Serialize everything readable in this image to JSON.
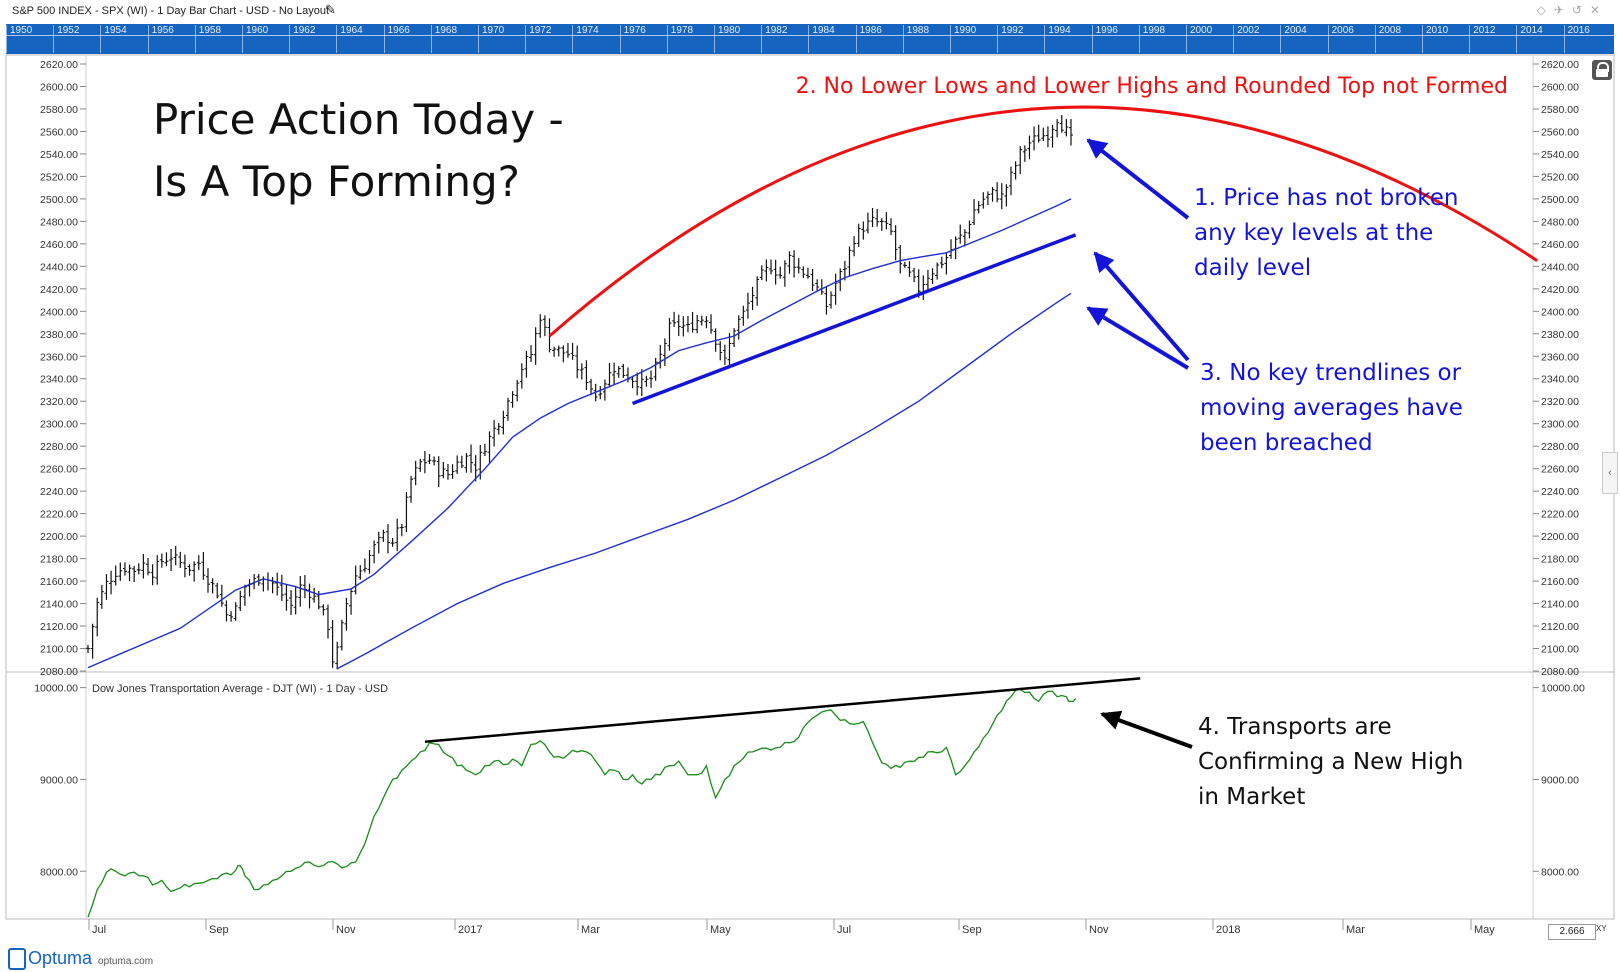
{
  "window": {
    "title": "S&P 500 INDEX - SPX (WI) - 1 Day Bar Chart - USD - No Layout",
    "pen_icon": "pen-icon",
    "controls": [
      "◇",
      "✈",
      "↺",
      "✕"
    ]
  },
  "year_bar": [
    "1950",
    "1952",
    "1954",
    "1956",
    "1958",
    "1960",
    "1962",
    "1964",
    "1966",
    "1968",
    "1970",
    "1972",
    "1974",
    "1976",
    "1978",
    "1980",
    "1982",
    "1984",
    "1986",
    "1988",
    "1990",
    "1992",
    "1994",
    "1996",
    "1998",
    "2000",
    "2002",
    "2004",
    "2006",
    "2008",
    "2010",
    "2012",
    "2014",
    "2016"
  ],
  "colors": {
    "price_bars": "#111111",
    "moving_average": "#1f2fd6",
    "top_arc": "#ee1111",
    "annotation_blue": "#1414d8",
    "transports": "#1a8c1a",
    "trendline_black": "#000000",
    "year_bar": "#1565c0"
  },
  "annotations": {
    "heading_line1": "Price Action Today -",
    "heading_line2": "Is A Top Forming?",
    "note2": "2. No Lower Lows and Lower Highs and Rounded Top not Formed",
    "note1_lines": [
      "1. Price has not broken",
      "any key levels at the",
      "daily level"
    ],
    "note3_lines": [
      "3. No key trendlines or",
      "moving averages have",
      "been breached"
    ],
    "note4_lines": [
      "4. Transports are",
      "Confirming a New High",
      "in Market"
    ]
  },
  "lower_panel_title": "Dow Jones Transportation Average - DJT (WI) - 1 Day - USD",
  "footer": {
    "brand": "Optuma",
    "site": "optuma.com",
    "zoom": "2.666",
    "xy_label": "XY"
  },
  "chart_data": [
    {
      "type": "bar",
      "title": "",
      "series_name": "S&P 500 INDEX - SPX (WI)",
      "ylim": [
        2080,
        2620
      ],
      "yticks": [
        "2620.00",
        "2600.00",
        "2580.00",
        "2560.00",
        "2540.00",
        "2520.00",
        "2500.00",
        "2480.00",
        "2460.00",
        "2440.00",
        "2420.00",
        "2400.00",
        "2380.00",
        "2360.00",
        "2340.00",
        "2320.00",
        "2300.00",
        "2280.00",
        "2260.00",
        "2240.00",
        "2220.00",
        "2200.00",
        "2180.00",
        "2160.00",
        "2140.00",
        "2120.00",
        "2100.00",
        "2080.00"
      ],
      "xticks": [
        "Jul",
        "Sep",
        "Nov",
        "2017",
        "Mar",
        "May",
        "Jul",
        "Sep",
        "Nov",
        "2018",
        "Mar",
        "May"
      ],
      "close_path": [
        [
          0,
          2100
        ],
        [
          2,
          2140
        ],
        [
          4,
          2158
        ],
        [
          6,
          2168
        ],
        [
          8,
          2172
        ],
        [
          10,
          2170
        ],
        [
          12,
          2175
        ],
        [
          14,
          2168
        ],
        [
          16,
          2178
        ],
        [
          18,
          2182
        ],
        [
          20,
          2176
        ],
        [
          22,
          2172
        ],
        [
          24,
          2176
        ],
        [
          26,
          2162
        ],
        [
          28,
          2150
        ],
        [
          30,
          2130
        ],
        [
          32,
          2135
        ],
        [
          34,
          2155
        ],
        [
          36,
          2160
        ],
        [
          38,
          2165
        ],
        [
          40,
          2158
        ],
        [
          42,
          2148
        ],
        [
          44,
          2138
        ],
        [
          46,
          2155
        ],
        [
          48,
          2150
        ],
        [
          50,
          2140
        ],
        [
          52,
          2120
        ],
        [
          53,
          2090
        ],
        [
          54,
          2098
        ],
        [
          56,
          2140
        ],
        [
          58,
          2165
        ],
        [
          60,
          2175
        ],
        [
          62,
          2190
        ],
        [
          64,
          2200
        ],
        [
          66,
          2196
        ],
        [
          68,
          2210
        ],
        [
          70,
          2250
        ],
        [
          72,
          2265
        ],
        [
          74,
          2268
        ],
        [
          76,
          2258
        ],
        [
          78,
          2255
        ],
        [
          80,
          2265
        ],
        [
          82,
          2270
        ],
        [
          84,
          2262
        ],
        [
          86,
          2280
        ],
        [
          88,
          2295
        ],
        [
          90,
          2310
        ],
        [
          92,
          2330
        ],
        [
          94,
          2350
        ],
        [
          96,
          2362
        ],
        [
          98,
          2396
        ],
        [
          100,
          2370
        ],
        [
          102,
          2365
        ],
        [
          104,
          2362
        ],
        [
          106,
          2350
        ],
        [
          108,
          2340
        ],
        [
          110,
          2325
        ],
        [
          112,
          2338
        ],
        [
          114,
          2350
        ],
        [
          116,
          2345
        ],
        [
          118,
          2340
        ],
        [
          120,
          2335
        ],
        [
          122,
          2340
        ],
        [
          124,
          2360
        ],
        [
          126,
          2385
        ],
        [
          128,
          2388
        ],
        [
          130,
          2385
        ],
        [
          132,
          2392
        ],
        [
          134,
          2395
        ],
        [
          136,
          2375
        ],
        [
          138,
          2355
        ],
        [
          140,
          2385
        ],
        [
          142,
          2398
        ],
        [
          144,
          2415
        ],
        [
          146,
          2432
        ],
        [
          148,
          2440
        ],
        [
          150,
          2432
        ],
        [
          152,
          2448
        ],
        [
          154,
          2438
        ],
        [
          156,
          2432
        ],
        [
          158,
          2420
        ],
        [
          160,
          2405
        ],
        [
          162,
          2425
        ],
        [
          164,
          2440
        ],
        [
          166,
          2465
        ],
        [
          168,
          2475
        ],
        [
          170,
          2480
        ],
        [
          172,
          2478
        ],
        [
          174,
          2470
        ],
        [
          176,
          2440
        ],
        [
          178,
          2432
        ],
        [
          180,
          2420
        ],
        [
          182,
          2432
        ],
        [
          184,
          2440
        ],
        [
          186,
          2448
        ],
        [
          188,
          2462
        ],
        [
          190,
          2470
        ],
        [
          192,
          2490
        ],
        [
          194,
          2500
        ],
        [
          196,
          2505
        ],
        [
          198,
          2502
        ],
        [
          200,
          2520
        ],
        [
          202,
          2540
        ],
        [
          204,
          2550
        ],
        [
          206,
          2555
        ],
        [
          208,
          2558
        ],
        [
          210,
          2572
        ],
        [
          212,
          2560
        ],
        [
          213,
          2552
        ]
      ],
      "moving_averages": [
        {
          "name": "shorter MA",
          "points": [
            [
              0,
              2083
            ],
            [
              20,
              2118
            ],
            [
              32,
              2152
            ],
            [
              38,
              2162
            ],
            [
              45,
              2155
            ],
            [
              50,
              2148
            ],
            [
              57,
              2153
            ],
            [
              62,
              2166
            ],
            [
              70,
              2195
            ],
            [
              78,
              2225
            ],
            [
              86,
              2260
            ],
            [
              92,
              2288
            ],
            [
              98,
              2305
            ],
            [
              104,
              2318
            ],
            [
              110,
              2328
            ],
            [
              116,
              2338
            ],
            [
              122,
              2350
            ],
            [
              128,
              2365
            ],
            [
              134,
              2372
            ],
            [
              140,
              2378
            ],
            [
              146,
              2392
            ],
            [
              152,
              2405
            ],
            [
              158,
              2418
            ],
            [
              164,
              2430
            ],
            [
              170,
              2438
            ],
            [
              176,
              2445
            ],
            [
              180,
              2448
            ],
            [
              186,
              2452
            ],
            [
              192,
              2462
            ],
            [
              198,
              2472
            ],
            [
              204,
              2483
            ],
            [
              210,
              2494
            ],
            [
              213,
              2500
            ]
          ]
        },
        {
          "name": "longer MA",
          "points": [
            [
              54,
              2082
            ],
            [
              60,
              2095
            ],
            [
              70,
              2118
            ],
            [
              80,
              2140
            ],
            [
              90,
              2158
            ],
            [
              100,
              2172
            ],
            [
              110,
              2185
            ],
            [
              120,
              2200
            ],
            [
              130,
              2215
            ],
            [
              140,
              2232
            ],
            [
              150,
              2252
            ],
            [
              160,
              2272
            ],
            [
              170,
              2295
            ],
            [
              180,
              2320
            ],
            [
              190,
              2350
            ],
            [
              200,
              2380
            ],
            [
              210,
              2408
            ],
            [
              213,
              2416
            ]
          ]
        }
      ],
      "trendline": [
        [
          118,
          2318
        ],
        [
          214,
          2468
        ]
      ],
      "rounded_top_arc": {
        "from": [
          100,
          2378
        ],
        "apex": [
          205,
          2580
        ],
        "to": [
          314,
          2445
        ]
      }
    },
    {
      "type": "line",
      "title": "Dow Jones Transportation Average - DJT (WI) - 1 Day - USD",
      "ylim": [
        7480,
        10170
      ],
      "yticks": [
        "10000.00",
        "9000.00",
        "8000.00"
      ],
      "series": [
        {
          "name": "Dow Jones Transportation Average - DJT (WI)",
          "color": "#1a8c1a",
          "points": [
            [
              0,
              7500
            ],
            [
              2,
              7800
            ],
            [
              4,
              7990
            ],
            [
              6,
              8000
            ],
            [
              8,
              7950
            ],
            [
              10,
              7990
            ],
            [
              12,
              7950
            ],
            [
              14,
              7850
            ],
            [
              16,
              7900
            ],
            [
              18,
              7780
            ],
            [
              20,
              7820
            ],
            [
              22,
              7830
            ],
            [
              24,
              7870
            ],
            [
              26,
              7900
            ],
            [
              28,
              7920
            ],
            [
              30,
              7980
            ],
            [
              32,
              8010
            ],
            [
              33,
              8060
            ],
            [
              34,
              7950
            ],
            [
              36,
              7800
            ],
            [
              38,
              7850
            ],
            [
              40,
              7900
            ],
            [
              42,
              7950
            ],
            [
              44,
              8000
            ],
            [
              46,
              8050
            ],
            [
              48,
              8100
            ],
            [
              50,
              8050
            ],
            [
              52,
              8100
            ],
            [
              54,
              8080
            ],
            [
              56,
              8050
            ],
            [
              58,
              8100
            ],
            [
              60,
              8300
            ],
            [
              62,
              8600
            ],
            [
              64,
              8800
            ],
            [
              66,
              9000
            ],
            [
              68,
              9100
            ],
            [
              70,
              9200
            ],
            [
              72,
              9300
            ],
            [
              74,
              9400
            ],
            [
              76,
              9380
            ],
            [
              78,
              9260
            ],
            [
              80,
              9150
            ],
            [
              82,
              9100
            ],
            [
              84,
              9050
            ],
            [
              86,
              9150
            ],
            [
              88,
              9200
            ],
            [
              90,
              9160
            ],
            [
              92,
              9220
            ],
            [
              94,
              9150
            ],
            [
              96,
              9380
            ],
            [
              98,
              9420
            ],
            [
              100,
              9300
            ],
            [
              102,
              9250
            ],
            [
              104,
              9270
            ],
            [
              106,
              9300
            ],
            [
              108,
              9300
            ],
            [
              110,
              9200
            ],
            [
              112,
              9050
            ],
            [
              114,
              9100
            ],
            [
              116,
              9000
            ],
            [
              118,
              9050
            ],
            [
              120,
              8950
            ],
            [
              122,
              9000
            ],
            [
              124,
              9050
            ],
            [
              126,
              9150
            ],
            [
              128,
              9200
            ],
            [
              130,
              9050
            ],
            [
              132,
              9050
            ],
            [
              134,
              9150
            ],
            [
              136,
              8800
            ],
            [
              138,
              9000
            ],
            [
              140,
              9150
            ],
            [
              142,
              9230
            ],
            [
              144,
              9300
            ],
            [
              146,
              9340
            ],
            [
              148,
              9320
            ],
            [
              150,
              9350
            ],
            [
              152,
              9400
            ],
            [
              154,
              9460
            ],
            [
              156,
              9620
            ],
            [
              158,
              9700
            ],
            [
              160,
              9750
            ],
            [
              162,
              9700
            ],
            [
              164,
              9650
            ],
            [
              166,
              9600
            ],
            [
              168,
              9630
            ],
            [
              170,
              9400
            ],
            [
              172,
              9180
            ],
            [
              174,
              9120
            ],
            [
              176,
              9130
            ],
            [
              178,
              9200
            ],
            [
              180,
              9240
            ],
            [
              182,
              9300
            ],
            [
              184,
              9290
            ],
            [
              186,
              9350
            ],
            [
              188,
              9050
            ],
            [
              190,
              9150
            ],
            [
              192,
              9300
            ],
            [
              194,
              9450
            ],
            [
              196,
              9600
            ],
            [
              198,
              9750
            ],
            [
              200,
              9900
            ],
            [
              202,
              9980
            ],
            [
              204,
              9950
            ],
            [
              206,
              9850
            ],
            [
              208,
              9960
            ],
            [
              210,
              9900
            ],
            [
              212,
              9900
            ],
            [
              213,
              9850
            ],
            [
              214,
              9880
            ]
          ]
        }
      ],
      "trendline": [
        [
          73,
          9410
        ],
        [
          228,
          10100
        ]
      ]
    }
  ]
}
